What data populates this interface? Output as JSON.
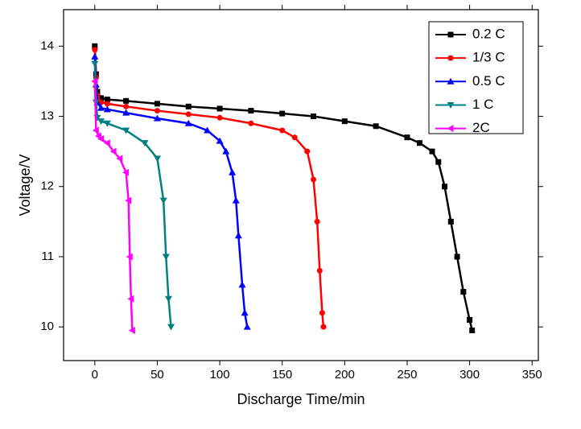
{
  "chart_data": {
    "type": "line",
    "xlabel": "Discharge Time/min",
    "ylabel": "Voltage/V",
    "xlim": [
      -25,
      355
    ],
    "ylim": [
      9.52,
      14.52
    ],
    "xticks": [
      0,
      50,
      100,
      150,
      200,
      250,
      300,
      350
    ],
    "yticks": [
      10,
      11,
      12,
      13,
      14
    ],
    "legend": "upper right",
    "series": [
      {
        "name": "0.2 C",
        "color": "#000000",
        "marker": "square",
        "x": [
          0,
          1,
          2,
          5,
          10,
          25,
          50,
          75,
          100,
          125,
          150,
          175,
          200,
          225,
          250,
          260,
          270,
          275,
          280,
          285,
          290,
          295,
          300,
          302
        ],
        "values": [
          14.0,
          13.6,
          13.35,
          13.26,
          13.24,
          13.22,
          13.18,
          13.14,
          13.11,
          13.08,
          13.04,
          13.0,
          12.93,
          12.86,
          12.7,
          12.62,
          12.5,
          12.35,
          12.0,
          11.5,
          11.0,
          10.5,
          10.1,
          9.95
        ]
      },
      {
        "name": "1/3 C",
        "color": "#ff0000",
        "marker": "circle",
        "x": [
          0,
          1,
          2,
          5,
          10,
          25,
          50,
          75,
          100,
          125,
          150,
          160,
          170,
          175,
          178,
          180,
          182,
          183
        ],
        "values": [
          13.95,
          13.55,
          13.3,
          13.2,
          13.18,
          13.14,
          13.08,
          13.03,
          12.98,
          12.9,
          12.8,
          12.7,
          12.5,
          12.1,
          11.5,
          10.8,
          10.2,
          10.0
        ]
      },
      {
        "name": "0.5 C",
        "color": "#0000ff",
        "marker": "triangle-up",
        "x": [
          0,
          1,
          2,
          5,
          10,
          25,
          50,
          75,
          90,
          100,
          105,
          110,
          113,
          115,
          118,
          120,
          122
        ],
        "values": [
          13.85,
          13.45,
          13.2,
          13.12,
          13.1,
          13.05,
          12.97,
          12.9,
          12.8,
          12.65,
          12.5,
          12.2,
          11.8,
          11.3,
          10.6,
          10.2,
          10.0
        ]
      },
      {
        "name": "1 C",
        "color": "#008080",
        "marker": "triangle-down",
        "x": [
          0,
          1,
          2,
          5,
          10,
          25,
          40,
          50,
          55,
          57,
          59,
          61
        ],
        "values": [
          13.75,
          13.2,
          12.98,
          12.93,
          12.9,
          12.8,
          12.62,
          12.4,
          11.8,
          11.0,
          10.4,
          10.0
        ]
      },
      {
        "name": "2C",
        "color": "#ff00ff",
        "marker": "triangle-left",
        "x": [
          0,
          1,
          3,
          5,
          10,
          15,
          20,
          25,
          27,
          28,
          29,
          30
        ],
        "values": [
          13.5,
          12.8,
          12.72,
          12.68,
          12.62,
          12.5,
          12.4,
          12.2,
          11.8,
          11.0,
          10.4,
          9.95
        ]
      }
    ]
  }
}
